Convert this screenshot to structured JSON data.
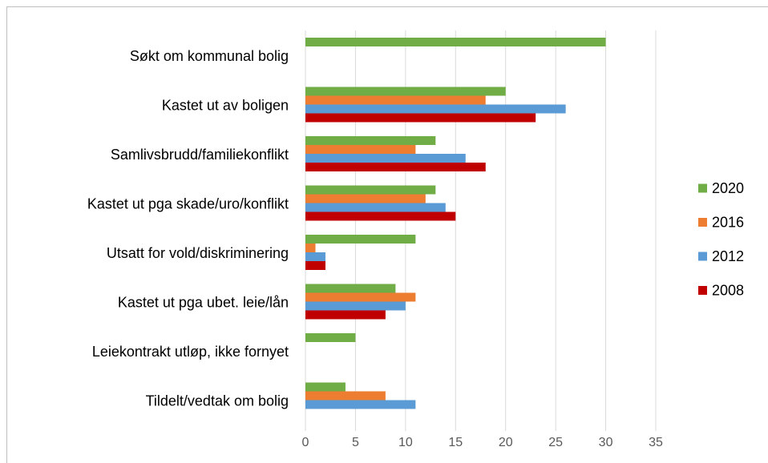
{
  "chart_data": {
    "type": "bar",
    "orientation": "horizontal",
    "categories": [
      "Søkt om kommunal bolig",
      "Kastet ut av boligen",
      "Samlivsbrudd/familiekonflikt",
      "Kastet ut pga skade/uro/konflikt",
      "Utsatt for vold/diskriminering",
      "Kastet ut pga ubet. leie/lån",
      "Leiekontrakt utløp, ikke fornyet",
      "Tildelt/vedtak om bolig"
    ],
    "series": [
      {
        "name": "2020",
        "color": "#70ad47",
        "values": [
          30,
          20,
          13,
          13,
          11,
          9,
          5,
          4
        ]
      },
      {
        "name": "2016",
        "color": "#ed7d31",
        "values": [
          null,
          18,
          11,
          12,
          1,
          11,
          null,
          8
        ]
      },
      {
        "name": "2012",
        "color": "#5b9bd5",
        "values": [
          null,
          26,
          16,
          14,
          2,
          10,
          null,
          11
        ]
      },
      {
        "name": "2008",
        "color": "#c00000",
        "values": [
          null,
          23,
          18,
          15,
          2,
          8,
          null,
          null
        ]
      }
    ],
    "xlim": [
      0,
      35
    ],
    "xticks": [
      0,
      5,
      10,
      15,
      20,
      25,
      30,
      35
    ],
    "grid": true,
    "legend": "right"
  }
}
